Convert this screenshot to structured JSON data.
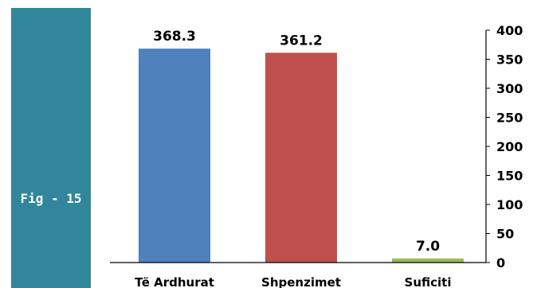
{
  "sidebar": {
    "label": "Fig - 15",
    "color": "#31869b"
  },
  "chart_data": {
    "type": "bar",
    "categories": [
      "Të Ardhurat",
      "Shpenzimet",
      "Suficiti"
    ],
    "values": [
      368.3,
      361.2,
      7.0
    ],
    "value_labels": [
      "368.3",
      "361.2",
      "7.0"
    ],
    "colors": [
      "#4f81bd",
      "#c0504d",
      "#9bbb59"
    ],
    "title": "",
    "xlabel": "",
    "ylabel": "",
    "ylim": [
      0,
      400
    ],
    "yticks": [
      0,
      50,
      100,
      150,
      200,
      250,
      300,
      350,
      400
    ],
    "y_axis_position": "right",
    "grid": false,
    "legend": false
  }
}
